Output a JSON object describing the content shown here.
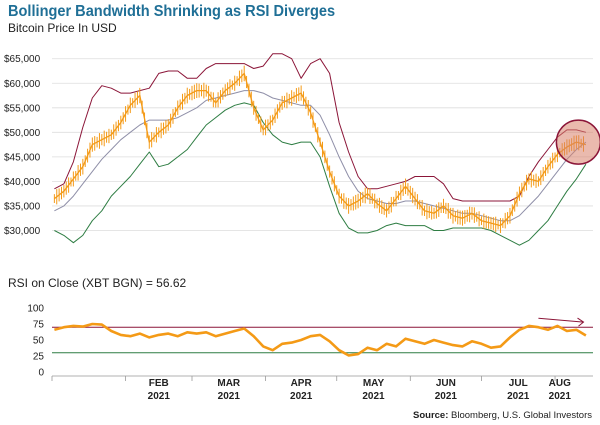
{
  "chart_data": [
    {
      "type": "line",
      "title": "Bollinger Bandwidth Shrinking as RSI Diverges",
      "subtitle": "Bitcoin Price In USD",
      "ylim": [
        25000,
        68000
      ],
      "yticks": [
        30000,
        35000,
        40000,
        45000,
        50000,
        55000,
        60000,
        65000
      ],
      "ytick_labels": [
        "$30,000",
        "$35,000",
        "$40,000",
        "$45,000",
        "$50,000",
        "$55,000",
        "$60,000",
        "$65,000"
      ],
      "grid": true,
      "annotation": "circle-highlight-latest-price",
      "series": [
        {
          "color": "#f49a16",
          "x": [
            1,
            5,
            9,
            13,
            17,
            21,
            25,
            29,
            33,
            37,
            41,
            45,
            49,
            53,
            57,
            61,
            65,
            69,
            73,
            77,
            81,
            85,
            89,
            93,
            97,
            101,
            105,
            109,
            113,
            117,
            121,
            125,
            129,
            133,
            137,
            141,
            145,
            149,
            153,
            157,
            161,
            165,
            169,
            173,
            177,
            181,
            185,
            189,
            193,
            197,
            201,
            205,
            209,
            213,
            217,
            221,
            225
          ],
          "values": [
            36500,
            38000,
            40500,
            43000,
            47500,
            48500,
            49500,
            52000,
            55500,
            57500,
            48000,
            50000,
            51500,
            55000,
            57500,
            58500,
            58500,
            56000,
            58500,
            60000,
            62000,
            55000,
            50500,
            52500,
            56000,
            57000,
            58000,
            54000,
            48000,
            42000,
            37000,
            35000,
            36000,
            37500,
            35500,
            34000,
            36500,
            39000,
            36500,
            34000,
            33500,
            35000,
            33000,
            32500,
            33500,
            32000,
            31500,
            31000,
            33000,
            37500,
            40500,
            40000,
            43000,
            45500,
            47000,
            48000,
            47500
          ]
        },
        {
          "color": "#8f8fa8",
          "x": [
            1,
            5,
            9,
            13,
            17,
            21,
            25,
            29,
            33,
            37,
            41,
            45,
            49,
            53,
            57,
            61,
            65,
            69,
            73,
            77,
            81,
            85,
            89,
            93,
            97,
            101,
            105,
            109,
            113,
            117,
            121,
            125,
            129,
            133,
            137,
            141,
            145,
            149,
            153,
            157,
            161,
            165,
            169,
            173,
            177,
            181,
            185,
            189,
            193,
            197,
            201,
            205,
            209,
            213,
            217,
            221,
            225
          ],
          "values": [
            34000,
            35000,
            37000,
            39500,
            42000,
            44500,
            46500,
            48500,
            50000,
            51500,
            52500,
            52500,
            52500,
            53000,
            54000,
            55000,
            56500,
            57000,
            57500,
            58000,
            58500,
            58500,
            58000,
            57000,
            56500,
            56000,
            55500,
            55500,
            53500,
            49500,
            45000,
            41000,
            38000,
            36500,
            36000,
            35500,
            35500,
            36000,
            36000,
            35500,
            35000,
            34500,
            34000,
            33500,
            33500,
            33000,
            32500,
            32000,
            32000,
            33000,
            35000,
            37000,
            39500,
            42000,
            44500,
            46500,
            48000
          ]
        },
        {
          "color": "#8b1538",
          "x": [
            1,
            5,
            9,
            13,
            17,
            21,
            25,
            29,
            33,
            37,
            41,
            45,
            49,
            53,
            57,
            61,
            65,
            69,
            73,
            77,
            81,
            85,
            89,
            93,
            97,
            101,
            105,
            109,
            113,
            117,
            121,
            125,
            129,
            133,
            137,
            141,
            145,
            149,
            153,
            157,
            161,
            165,
            169,
            173,
            177,
            181,
            185,
            189,
            193,
            197,
            201,
            205,
            209,
            213,
            217,
            221,
            225
          ],
          "values": [
            38500,
            39500,
            44000,
            51000,
            57000,
            59500,
            59000,
            58000,
            58000,
            58500,
            59000,
            62000,
            62500,
            62500,
            61000,
            61000,
            63000,
            64000,
            64000,
            64000,
            64000,
            63000,
            63500,
            66000,
            66000,
            65000,
            61000,
            64000,
            65000,
            62000,
            52000,
            46000,
            41000,
            38500,
            38500,
            39000,
            39500,
            40000,
            41000,
            41000,
            41000,
            39500,
            36500,
            36000,
            36000,
            36000,
            36000,
            36000,
            36000,
            37000,
            41000,
            44000,
            46500,
            49000,
            50500,
            50500,
            50000
          ]
        },
        {
          "color": "#2e7d43",
          "x": [
            1,
            5,
            9,
            13,
            17,
            21,
            25,
            29,
            33,
            37,
            41,
            45,
            49,
            53,
            57,
            61,
            65,
            69,
            73,
            77,
            81,
            85,
            89,
            93,
            97,
            101,
            105,
            109,
            113,
            117,
            121,
            125,
            129,
            133,
            137,
            141,
            145,
            149,
            153,
            157,
            161,
            165,
            169,
            173,
            177,
            181,
            185,
            189,
            193,
            197,
            201,
            205,
            209,
            213,
            217,
            221,
            225
          ],
          "values": [
            30000,
            29000,
            27500,
            29000,
            32000,
            34000,
            37000,
            39000,
            41000,
            43500,
            46000,
            43000,
            43500,
            45000,
            46500,
            49000,
            51500,
            53000,
            54500,
            55500,
            56000,
            55500,
            52000,
            49500,
            48000,
            47500,
            48000,
            48000,
            45000,
            39000,
            33500,
            30500,
            29500,
            29500,
            30000,
            31000,
            31500,
            31000,
            31000,
            31000,
            30000,
            30000,
            30500,
            30500,
            30500,
            30500,
            30000,
            29000,
            28000,
            27000,
            28000,
            30000,
            32000,
            35000,
            38000,
            40500,
            43500
          ]
        }
      ]
    },
    {
      "type": "line",
      "title": "RSI on Close (XBT BGN) = 56.62",
      "ylim": [
        0,
        100
      ],
      "yticks": [
        0,
        25,
        50,
        75,
        100
      ],
      "ytick_labels": [
        "0",
        "25",
        "50",
        "75",
        "100"
      ],
      "reference_lines": [
        70,
        30
      ],
      "reference_colors": [
        "#8b1538",
        "#2e7d43"
      ],
      "categories": [
        "FEB\n2021",
        "MAR\n2021",
        "APR\n2021",
        "MAY\n2021",
        "JUN\n2021",
        "JUL\n2021",
        "AUG\n2021"
      ],
      "annotation": "arrow-declining-trend",
      "series": [
        {
          "color": "#f49a16",
          "x": [
            1,
            5,
            9,
            13,
            17,
            21,
            25,
            29,
            33,
            37,
            41,
            45,
            49,
            53,
            57,
            61,
            65,
            69,
            73,
            77,
            81,
            85,
            89,
            93,
            97,
            101,
            105,
            109,
            113,
            117,
            121,
            125,
            129,
            133,
            137,
            141,
            145,
            149,
            153,
            157,
            161,
            165,
            169,
            173,
            177,
            181,
            185,
            189,
            193,
            197,
            201,
            205,
            209,
            213,
            217,
            221,
            225
          ],
          "values": [
            66,
            70,
            72,
            71,
            75,
            74,
            64,
            58,
            56,
            60,
            54,
            58,
            60,
            56,
            62,
            60,
            62,
            56,
            60,
            64,
            68,
            56,
            40,
            34,
            44,
            46,
            50,
            56,
            58,
            48,
            34,
            26,
            28,
            38,
            34,
            44,
            40,
            52,
            48,
            44,
            50,
            46,
            42,
            40,
            48,
            44,
            38,
            40,
            54,
            66,
            72,
            70,
            66,
            72,
            64,
            66,
            57
          ]
        }
      ]
    }
  ],
  "source_label": "Source:",
  "source_text": "Bloomberg, U.S. Global Investors"
}
